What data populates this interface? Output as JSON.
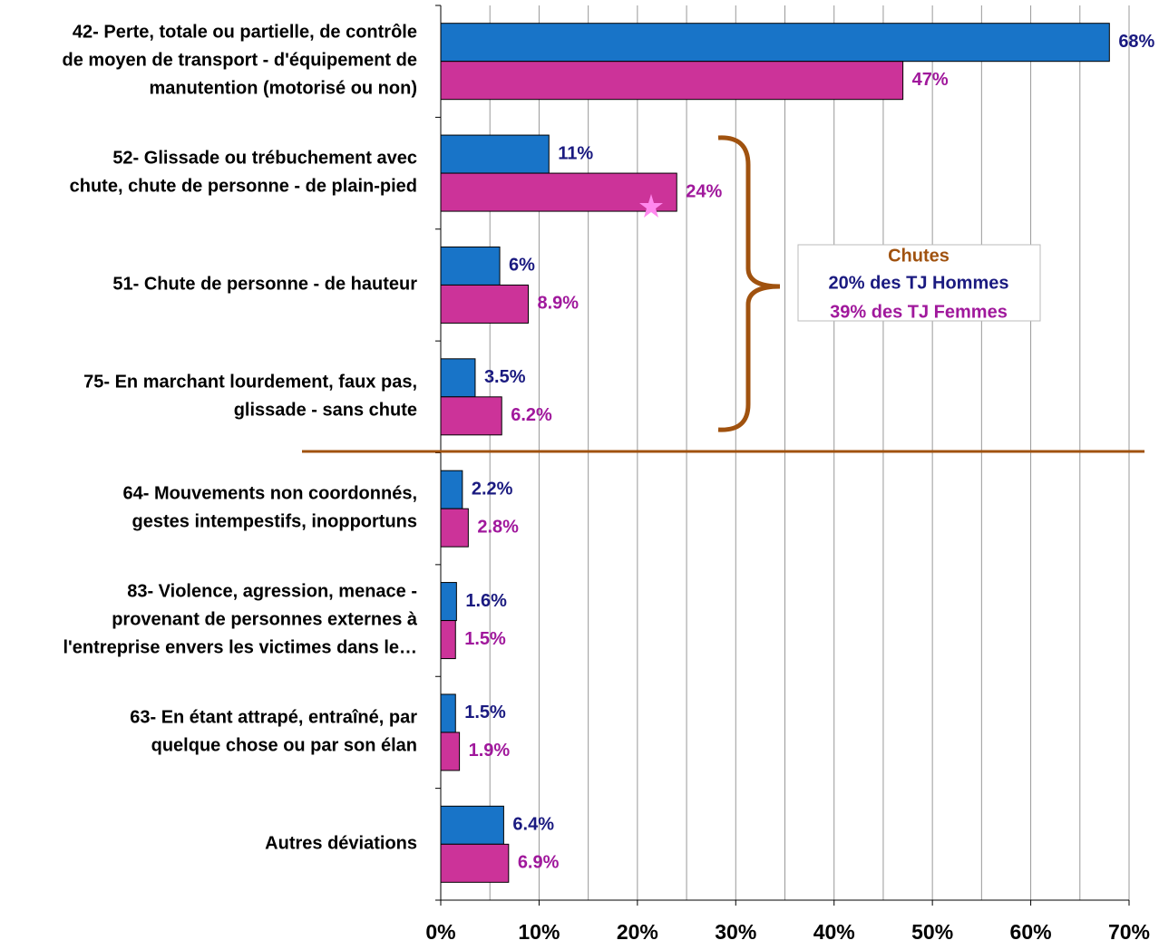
{
  "chart_data": {
    "type": "barh",
    "categories": [
      "42- Perte, totale ou partielle, de contrôle\nde moyen de transport - d'équipement de\nmanutention (motorisé ou non)",
      "52- Glissade ou trébuchement avec\nchute, chute de personne - de plain-pied",
      "51- Chute de personne - de hauteur",
      "75- En marchant lourdement, faux pas,\nglissade - sans chute",
      "64- Mouvements non coordonnés,\ngestes intempestifs, inopportuns",
      "83- Violence, agression, menace -\nprovenant de personnes externes à\nl'entreprise envers les victimes dans le…",
      "63- En étant attrapé, entraîné, par\nquelque chose ou par son élan",
      "Autres déviations"
    ],
    "series": [
      {
        "color": "#1874c8",
        "label_color": "#1a1a80",
        "values": [
          68,
          11,
          6,
          3.5,
          2.2,
          1.6,
          1.5,
          6.4
        ],
        "value_labels": [
          "68%",
          "11%",
          "6%",
          "3.5%",
          "2.2%",
          "1.6%",
          "1.5%",
          "6.4%"
        ]
      },
      {
        "color": "#cc3399",
        "label_color": "#a0189c",
        "values": [
          47,
          24,
          8.9,
          6.2,
          2.8,
          1.5,
          1.9,
          6.9
        ],
        "value_labels": [
          "47%",
          "24%",
          "8.9%",
          "6.2%",
          "2.8%",
          "1.5%",
          "1.9%",
          "6.9%"
        ]
      }
    ],
    "xlim": [
      0,
      70
    ],
    "xticks": [
      {
        "value": 0,
        "label": "0%"
      },
      {
        "value": 10,
        "label": "10%"
      },
      {
        "value": 20,
        "label": "20%"
      },
      {
        "value": 30,
        "label": "30%"
      },
      {
        "value": 40,
        "label": "40%"
      },
      {
        "value": 50,
        "label": "50%"
      },
      {
        "value": 60,
        "label": "60%"
      },
      {
        "value": 70,
        "label": "70%"
      }
    ],
    "xminor_ticks": [
      5,
      15,
      25,
      35,
      45,
      55,
      65
    ],
    "grid": true,
    "annotation": {
      "title": "Chutes",
      "lines": [
        "20% des TJ Hommes",
        "39% des TJ Femmes"
      ]
    }
  }
}
